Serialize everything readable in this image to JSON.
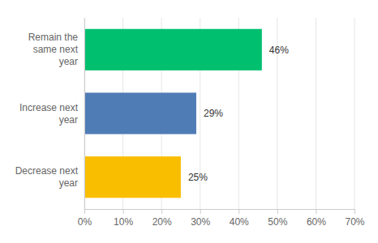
{
  "chart_data": {
    "type": "bar",
    "orientation": "horizontal",
    "categories": [
      "Remain the same next year",
      "Increase next year",
      "Decrease next year"
    ],
    "values": [
      46,
      29,
      25
    ],
    "value_labels": [
      "46%",
      "29%",
      "25%"
    ],
    "colors": [
      "#00bf6f",
      "#507cb6",
      "#f9be00"
    ],
    "xlim": [
      0,
      70
    ],
    "xticks": [
      {
        "value": 0,
        "label": "0%"
      },
      {
        "value": 10,
        "label": "10%"
      },
      {
        "value": 20,
        "label": "20%"
      },
      {
        "value": 30,
        "label": "30%"
      },
      {
        "value": 40,
        "label": "40%"
      },
      {
        "value": 50,
        "label": "50%"
      },
      {
        "value": 60,
        "label": "60%"
      },
      {
        "value": 70,
        "label": "70%"
      }
    ],
    "grid": true,
    "data_labels": true
  }
}
